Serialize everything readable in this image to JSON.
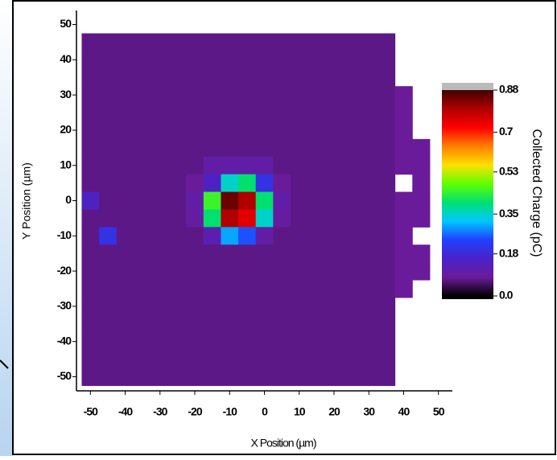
{
  "chart_data": {
    "type": "heatmap",
    "x_label": "X Position (µm)",
    "y_label": "Y Position (µm)",
    "x": [
      -50,
      -45,
      -40,
      -35,
      -30,
      -25,
      -20,
      -15,
      -10,
      -5,
      0,
      5,
      10,
      15,
      20,
      25,
      30,
      35,
      40,
      45
    ],
    "y": [
      45,
      40,
      35,
      30,
      25,
      20,
      15,
      10,
      5,
      0,
      -5,
      -10,
      -15,
      -20,
      -25,
      -30,
      -35,
      -40,
      -45,
      -50
    ],
    "values": [
      [
        0.07,
        0.07,
        0.07,
        0.07,
        0.07,
        0.07,
        0.07,
        0.07,
        0.07,
        0.07,
        0.07,
        0.07,
        0.07,
        0.07,
        0.07,
        0.07,
        0.07,
        0.07,
        null,
        null
      ],
      [
        0.07,
        0.07,
        0.07,
        0.07,
        0.07,
        0.07,
        0.07,
        0.07,
        0.07,
        0.07,
        0.07,
        0.07,
        0.07,
        0.07,
        0.07,
        0.07,
        0.07,
        0.07,
        null,
        null
      ],
      [
        0.07,
        0.07,
        0.07,
        0.07,
        0.07,
        0.07,
        0.07,
        0.07,
        0.07,
        0.07,
        0.07,
        0.07,
        0.07,
        0.07,
        0.07,
        0.07,
        0.07,
        0.07,
        null,
        null
      ],
      [
        0.07,
        0.07,
        0.07,
        0.07,
        0.07,
        0.07,
        0.07,
        0.07,
        0.07,
        0.07,
        0.07,
        0.07,
        0.07,
        0.07,
        0.07,
        0.07,
        0.07,
        0.07,
        0.08,
        null
      ],
      [
        0.07,
        0.07,
        0.07,
        0.07,
        0.07,
        0.07,
        0.07,
        0.07,
        0.07,
        0.07,
        0.07,
        0.07,
        0.07,
        0.07,
        0.07,
        0.07,
        0.07,
        0.07,
        0.08,
        null
      ],
      [
        0.07,
        0.07,
        0.07,
        0.07,
        0.07,
        0.07,
        0.07,
        0.07,
        0.07,
        0.07,
        0.07,
        0.07,
        0.07,
        0.07,
        0.07,
        0.07,
        0.07,
        0.07,
        0.08,
        null
      ],
      [
        0.07,
        0.07,
        0.07,
        0.07,
        0.07,
        0.07,
        0.07,
        0.07,
        0.07,
        0.07,
        0.07,
        0.07,
        0.07,
        0.07,
        0.07,
        0.07,
        0.07,
        0.07,
        0.08,
        0.08
      ],
      [
        0.07,
        0.07,
        0.07,
        0.07,
        0.07,
        0.07,
        0.07,
        0.1,
        0.1,
        0.1,
        0.1,
        0.07,
        0.07,
        0.07,
        0.07,
        0.07,
        0.07,
        0.07,
        0.08,
        0.08
      ],
      [
        0.07,
        0.07,
        0.07,
        0.07,
        0.07,
        0.07,
        0.08,
        0.15,
        0.35,
        0.4,
        0.2,
        0.08,
        0.07,
        0.07,
        0.07,
        0.07,
        0.07,
        0.07,
        null,
        0.08
      ],
      [
        0.15,
        0.07,
        0.07,
        0.07,
        0.07,
        0.07,
        0.1,
        0.45,
        0.85,
        0.8,
        0.4,
        0.1,
        0.07,
        0.07,
        0.07,
        0.07,
        0.07,
        0.07,
        0.08,
        0.08
      ],
      [
        0.07,
        0.07,
        0.07,
        0.07,
        0.07,
        0.07,
        0.09,
        0.4,
        0.8,
        0.75,
        0.35,
        0.09,
        0.07,
        0.07,
        0.07,
        0.07,
        0.07,
        0.07,
        0.08,
        0.08
      ],
      [
        0.07,
        0.2,
        0.07,
        0.07,
        0.07,
        0.07,
        0.07,
        0.12,
        0.3,
        0.25,
        0.1,
        0.07,
        0.07,
        0.07,
        0.07,
        0.07,
        0.07,
        0.07,
        0.08,
        null
      ],
      [
        0.07,
        0.07,
        0.07,
        0.07,
        0.07,
        0.07,
        0.07,
        0.07,
        0.07,
        0.07,
        0.07,
        0.07,
        0.07,
        0.07,
        0.07,
        0.07,
        0.07,
        0.07,
        0.08,
        0.08
      ],
      [
        0.07,
        0.07,
        0.07,
        0.07,
        0.07,
        0.07,
        0.07,
        0.07,
        0.07,
        0.07,
        0.07,
        0.07,
        0.07,
        0.07,
        0.07,
        0.07,
        0.07,
        0.07,
        0.08,
        0.08
      ],
      [
        0.07,
        0.07,
        0.07,
        0.07,
        0.07,
        0.07,
        0.07,
        0.07,
        0.07,
        0.07,
        0.07,
        0.07,
        0.07,
        0.07,
        0.07,
        0.07,
        0.07,
        0.07,
        0.08,
        null
      ],
      [
        0.07,
        0.07,
        0.07,
        0.07,
        0.07,
        0.07,
        0.07,
        0.07,
        0.07,
        0.07,
        0.07,
        0.07,
        0.07,
        0.07,
        0.07,
        0.07,
        0.07,
        0.07,
        null,
        null
      ],
      [
        0.07,
        0.07,
        0.07,
        0.07,
        0.07,
        0.07,
        0.07,
        0.07,
        0.07,
        0.07,
        0.07,
        0.07,
        0.07,
        0.07,
        0.07,
        0.07,
        0.07,
        0.07,
        null,
        null
      ],
      [
        0.07,
        0.07,
        0.07,
        0.07,
        0.07,
        0.07,
        0.07,
        0.07,
        0.07,
        0.07,
        0.07,
        0.07,
        0.07,
        0.07,
        0.07,
        0.07,
        0.07,
        0.07,
        null,
        null
      ],
      [
        0.07,
        0.07,
        0.07,
        0.07,
        0.07,
        0.07,
        0.07,
        0.07,
        0.07,
        0.07,
        0.07,
        0.07,
        0.07,
        0.07,
        0.07,
        0.07,
        0.07,
        0.07,
        null,
        null
      ],
      [
        0.07,
        0.07,
        0.07,
        0.07,
        0.07,
        0.07,
        0.07,
        0.07,
        0.07,
        0.07,
        0.07,
        0.07,
        0.07,
        0.07,
        0.07,
        0.07,
        0.07,
        0.07,
        null,
        null
      ]
    ],
    "xlim": [
      -54,
      54
    ],
    "ylim": [
      -54,
      54
    ],
    "xticks": [
      -50,
      -40,
      -30,
      -20,
      -10,
      0,
      10,
      20,
      30,
      40,
      50
    ],
    "yticks": [
      -50,
      -40,
      -30,
      -20,
      -10,
      0,
      10,
      20,
      30,
      40,
      50
    ],
    "colorbar_label": "Collected Charge (pC)",
    "clim": [
      0,
      0.88
    ],
    "cticks": [
      {
        "value": 0,
        "label": "0.0"
      },
      0.18,
      0.35,
      0.53,
      0.7,
      0.88
    ],
    "colormap": [
      "#000000",
      "#6a1b9a",
      "#4a22c8",
      "#2040ff",
      "#00c8ff",
      "#00e070",
      "#60ff00",
      "#ffe000",
      "#ff8000",
      "#ff0000",
      "#b00000",
      "#400000"
    ]
  }
}
